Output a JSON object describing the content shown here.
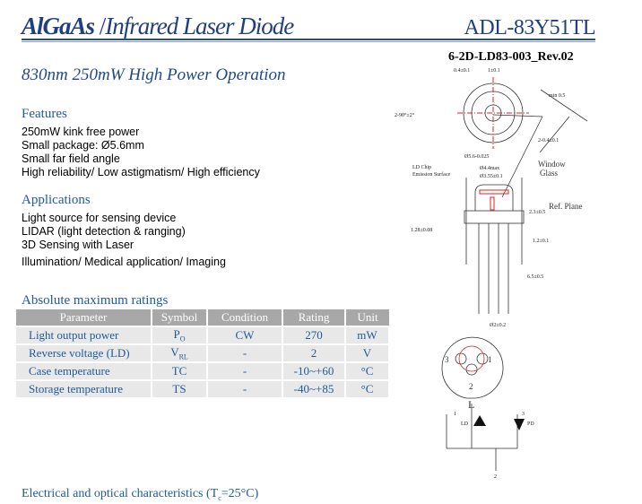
{
  "header": {
    "material": "AlGaAs",
    "separator": "/",
    "product_type": "Infrared Laser Diode",
    "model": "ADL-83Y51TL",
    "doc_id": "6-2D-LD83-003_Rev.02"
  },
  "subtitle": "830nm 250mW High Power Operation",
  "features": {
    "heading": "Features",
    "items": [
      "250mW kink free power",
      "Small package: Ø5.6mm",
      "Small far field angle",
      "High reliability/ Low astigmatism/ High efficiency"
    ]
  },
  "applications": {
    "heading": "Applications",
    "items": [
      "Light source for sensing device",
      "LIDAR (light detection & ranging)",
      "3D Sensing with Laser",
      "Illumination/ Medical application/ Imaging"
    ]
  },
  "ratings": {
    "heading": "Absolute maximum ratings",
    "columns": [
      "Parameter",
      "Symbol",
      "Condition",
      "Rating",
      "Unit"
    ],
    "rows": [
      {
        "parameter": "Light output power",
        "symbol": "P",
        "symbol_sub": "O",
        "condition": "CW",
        "rating": "270",
        "unit": "mW"
      },
      {
        "parameter": "Reverse voltage (LD)",
        "symbol": "V",
        "symbol_sub": "RL",
        "condition": "-",
        "rating": "2",
        "unit": "V"
      },
      {
        "parameter": "Case temperature",
        "symbol": "TC",
        "symbol_sub": "",
        "condition": "-",
        "rating": "-10~+60",
        "unit": "°C"
      },
      {
        "parameter": "Storage temperature",
        "symbol": "TS",
        "symbol_sub": "",
        "condition": "-",
        "rating": "-40~+85",
        "unit": "°C"
      }
    ]
  },
  "electrical_heading": {
    "prefix": "Electrical and optical characteristics (T",
    "sub": "c",
    "suffix": "=25°C)"
  },
  "drawing": {
    "labels": {
      "window": "Window",
      "glass": "Glass",
      "ld_chip": "LD Chip",
      "emission": "Emission Surface",
      "ref_plane": "Ref. Plane",
      "d1": "0.4±0.1",
      "d2": "1±0.1",
      "d3": "min 0.5",
      "d4": "2-90°±2°",
      "d5": "2-0.4±0.1",
      "d6": "Ø5.6-0.025",
      "d7": "Ø4.4max",
      "d8": "Ø3.55±0.1",
      "d9": "2.3±0.5",
      "d10": "1.28±0.08",
      "d11": "1.2±0.1",
      "d12": "6.5±0.5",
      "d13": "Ø2±0.2",
      "pin1": "1",
      "pin2": "2",
      "pin3": "3",
      "L": "L",
      "ld": "LD",
      "pd": "PD"
    }
  },
  "colors": {
    "title": "#1f3f7f",
    "text": "#1f5a9a",
    "table_header": "#a8a8a8",
    "table_row": "#e8e8e8",
    "centerline": "#e02020"
  }
}
